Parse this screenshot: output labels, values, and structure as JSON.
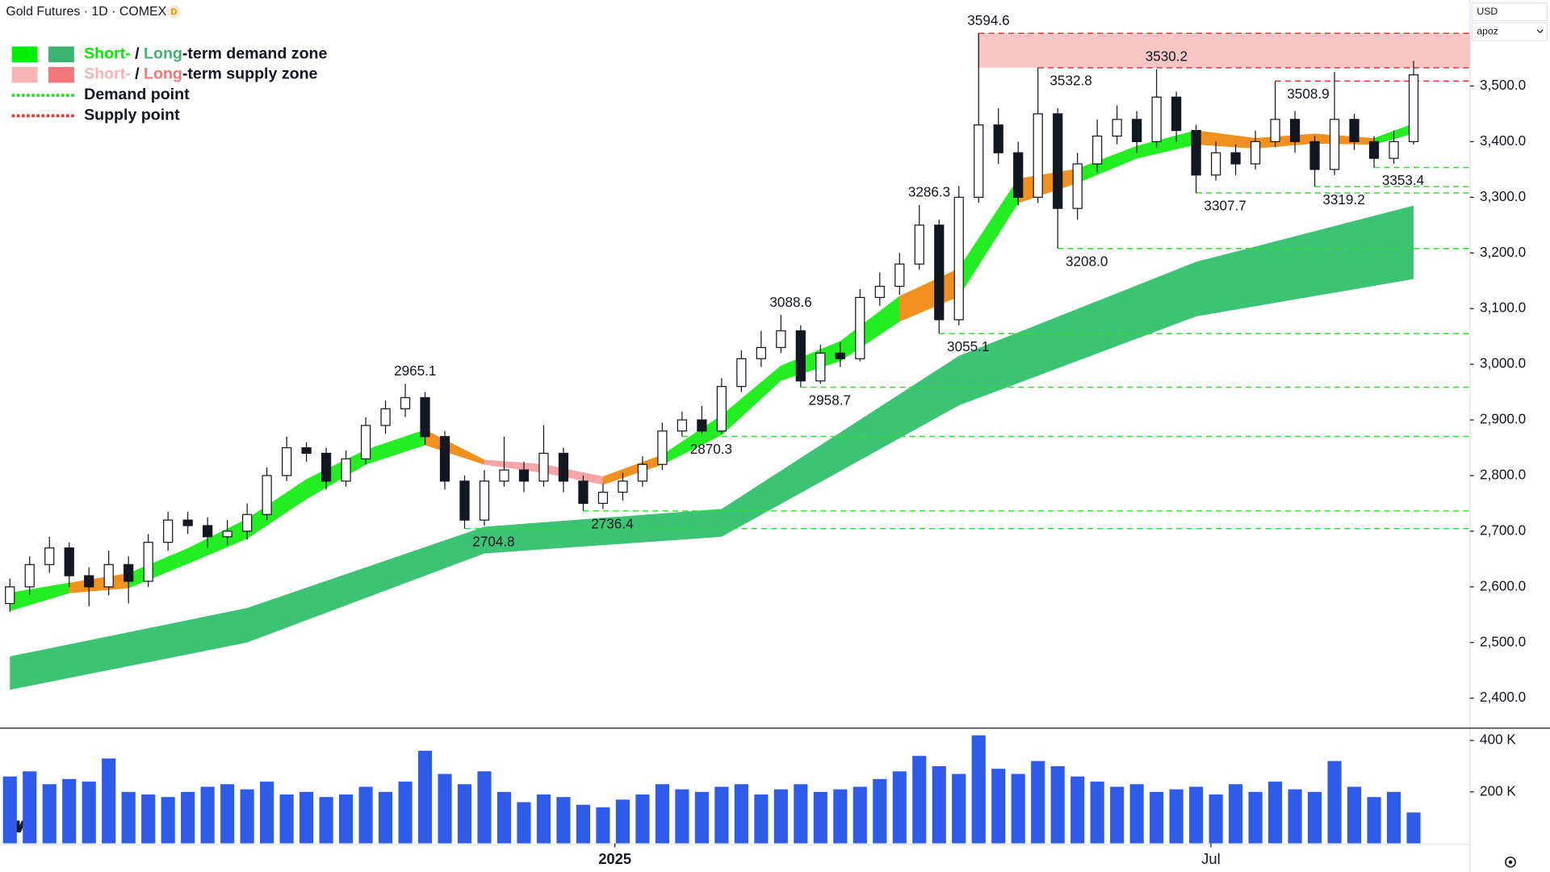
{
  "header": {
    "title": "Gold Futures · 1D · COMEX",
    "badge": "D",
    "currency": "USD",
    "unit_menu": "apoz"
  },
  "chart_data": {
    "type": "candlestick",
    "xlim": [
      -0.5,
      73.85
    ],
    "ylim": [
      2347,
      3654.5
    ],
    "xticks": [
      {
        "value": 30.6,
        "label": "2025"
      },
      {
        "value": 60.75,
        "label": "Jul"
      }
    ],
    "yticks": [
      {
        "value": 2400,
        "label": "2,400.0"
      },
      {
        "value": 2500,
        "label": "2,500.0"
      },
      {
        "value": 2600,
        "label": "2,600.0"
      },
      {
        "value": 2700,
        "label": "2,700.0"
      },
      {
        "value": 2800,
        "label": "2,800.0"
      },
      {
        "value": 2900,
        "label": "2,900.0"
      },
      {
        "value": 3000,
        "label": "3,000.0"
      },
      {
        "value": 3100,
        "label": "3,100.0"
      },
      {
        "value": 3200,
        "label": "3,200.0"
      },
      {
        "value": 3300,
        "label": "3,300.0"
      },
      {
        "value": 3400,
        "label": "3,400.0"
      },
      {
        "value": 3500,
        "label": "3,500.0"
      }
    ],
    "grid": false,
    "up_color": "#ffffff",
    "down_color": "#131722",
    "wick_color": "#131722",
    "open": [
      2570,
      2600,
      2640,
      2670,
      2620,
      2600,
      2640,
      2610,
      2680,
      2720,
      2710,
      2690,
      2700,
      2730,
      2800,
      2850,
      2840,
      2790,
      2830,
      2890,
      2920,
      2940,
      2870,
      2790,
      2720,
      2790,
      2810,
      2790,
      2840,
      2790,
      2750,
      2770,
      2790,
      2820,
      2880,
      2900,
      2880,
      2960,
      3010,
      3030,
      3060,
      2970,
      3020,
      3010,
      3120,
      3140,
      3180,
      3250,
      3080,
      3300,
      3430,
      3380,
      3300,
      3450,
      3280,
      3360,
      3410,
      3440,
      3400,
      3480,
      3420,
      3340,
      3380,
      3360,
      3400,
      3440,
      3400,
      3350,
      3440,
      3400,
      3370,
      3400
    ],
    "high": [
      2615,
      2655,
      2690,
      2680,
      2635,
      2665,
      2655,
      2695,
      2735,
      2735,
      2725,
      2720,
      2750,
      2815,
      2870,
      2860,
      2850,
      2845,
      2905,
      2935,
      2965.1,
      2950,
      2880,
      2800,
      2810,
      2870,
      2825,
      2890,
      2850,
      2800,
      2785,
      2805,
      2835,
      2895,
      2915,
      2925,
      2975,
      3025,
      3060,
      3088.6,
      3070,
      3035,
      3040,
      3135,
      3165,
      3200,
      3286.3,
      3260,
      3320,
      3594.6,
      3460,
      3400,
      3532.8,
      3460,
      3380,
      3440,
      3465,
      3455,
      3530.2,
      3490,
      3430,
      3400,
      3395,
      3420,
      3508.9,
      3455,
      3410,
      3525,
      3450,
      3410,
      3420,
      3545
    ],
    "low": [
      2555,
      2585,
      2625,
      2600,
      2565,
      2585,
      2570,
      2600,
      2665,
      2695,
      2670,
      2675,
      2685,
      2720,
      2790,
      2825,
      2775,
      2780,
      2820,
      2875,
      2905,
      2855,
      2775,
      2704.8,
      2710,
      2780,
      2770,
      2780,
      2770,
      2736.4,
      2740,
      2755,
      2780,
      2810,
      2870.3,
      2875,
      2875,
      2950,
      2995,
      3020,
      2958.7,
      2965,
      2995,
      3005,
      3105,
      3125,
      3170,
      3055.1,
      3070,
      3290,
      3360,
      3285,
      3290,
      3208,
      3260,
      3345,
      3395,
      3380,
      3390,
      3400,
      3307.7,
      3330,
      3340,
      3350,
      3390,
      3380,
      3319.2,
      3340,
      3385,
      3353.4,
      3360,
      3395
    ],
    "close": [
      2600,
      2640,
      2670,
      2620,
      2600,
      2640,
      2610,
      2680,
      2720,
      2710,
      2690,
      2700,
      2730,
      2800,
      2850,
      2840,
      2790,
      2830,
      2890,
      2920,
      2940,
      2870,
      2790,
      2720,
      2790,
      2810,
      2790,
      2840,
      2790,
      2750,
      2770,
      2790,
      2820,
      2880,
      2900,
      2880,
      2960,
      3010,
      3030,
      3060,
      2970,
      3020,
      3010,
      3120,
      3140,
      3180,
      3250,
      3080,
      3300,
      3430,
      3380,
      3300,
      3450,
      3280,
      3360,
      3410,
      3440,
      3400,
      3480,
      3420,
      3340,
      3380,
      3360,
      3400,
      3440,
      3400,
      3350,
      3440,
      3400,
      3370,
      3400,
      3520
    ],
    "volume": [
      260000,
      280000,
      230000,
      250000,
      240000,
      330000,
      200000,
      190000,
      180000,
      200000,
      220000,
      230000,
      210000,
      240000,
      190000,
      200000,
      180000,
      190000,
      220000,
      200000,
      240000,
      360000,
      270000,
      230000,
      280000,
      200000,
      160000,
      190000,
      180000,
      150000,
      140000,
      170000,
      190000,
      230000,
      210000,
      200000,
      220000,
      230000,
      190000,
      210000,
      230000,
      200000,
      210000,
      220000,
      250000,
      280000,
      340000,
      300000,
      270000,
      420000,
      290000,
      270000,
      320000,
      300000,
      260000,
      240000,
      220000,
      230000,
      200000,
      210000,
      220000,
      190000,
      230000,
      200000,
      240000,
      210000,
      200000,
      320000,
      220000,
      180000,
      200000,
      120000
    ],
    "volume_color": "#2f5bea",
    "vlim": [
      0,
      446000
    ],
    "vticks": [
      {
        "value": 200000,
        "label": "200 K"
      },
      {
        "value": 400000,
        "label": "400 K"
      }
    ],
    "long_band": {
      "color": "#3cc373",
      "x": [
        0,
        12,
        24,
        36,
        48,
        60,
        71
      ],
      "upper": [
        2475,
        2562,
        2708,
        2740,
        3015,
        3184,
        3285
      ],
      "lower": [
        2415,
        2500,
        2660,
        2690,
        2926,
        3086,
        3153
      ]
    },
    "short_band": {
      "x": [
        0,
        3,
        6,
        9,
        12,
        15,
        18,
        21,
        24,
        27,
        30,
        33,
        36,
        39,
        42,
        45,
        48,
        51,
        54,
        57,
        60,
        63,
        66,
        69,
        71
      ],
      "upper": [
        2589,
        2607,
        2624,
        2669,
        2722,
        2793,
        2846,
        2882,
        2828,
        2820,
        2798,
        2837,
        2908,
        2997,
        3041,
        3122,
        3172,
        3333,
        3351,
        3392,
        3420,
        3406,
        3414,
        3406,
        3432
      ],
      "lower": [
        2557,
        2589,
        2598,
        2642,
        2687,
        2758,
        2820,
        2855,
        2820,
        2805,
        2784,
        2820,
        2873,
        2971,
        3006,
        3077,
        3122,
        3290,
        3326,
        3370,
        3395,
        3388,
        3397,
        3395,
        3415
      ],
      "colors": [
        "#22ee22",
        "#f0901e",
        "#22ee22",
        "#22ee22",
        "#22ee22",
        "#22ee22",
        "#22ee22",
        "#f0901e",
        "#f4a6a6",
        "#f4a6a6",
        "#f0901e",
        "#22ee22",
        "#22ee22",
        "#22ee22",
        "#22ee22",
        "#f0901e",
        "#22ee22",
        "#f0901e",
        "#22ee22",
        "#22ee22",
        "#f0901e",
        "#f0901e",
        "#f0901e",
        "#22ee22"
      ]
    },
    "supply_zone": {
      "x": 49,
      "top": 3594.6,
      "bottom": 3532.8,
      "color": "#f8c0c0",
      "line_color": "#e53935"
    },
    "supply_points": [
      {
        "x": 52,
        "value": 3532.8
      },
      {
        "x": 64,
        "value": 3508.9
      }
    ],
    "demand_color": "#33dd33",
    "demand_points": [
      {
        "x": 23,
        "value": 2704.8
      },
      {
        "x": 29,
        "value": 2736.4
      },
      {
        "x": 34,
        "value": 2870.3
      },
      {
        "x": 40,
        "value": 2958.7
      },
      {
        "x": 47,
        "value": 3055.1
      },
      {
        "x": 53,
        "value": 3208,
        "label": "3208.0"
      },
      {
        "x": 60,
        "value": 3307.7
      },
      {
        "x": 66,
        "value": 3319.2
      },
      {
        "x": 69,
        "value": 3353.4
      }
    ],
    "peaks": [
      {
        "x": 20,
        "value": 2965.1
      },
      {
        "x": 39,
        "value": 3088.6
      },
      {
        "x": 46,
        "value": 3286.3
      },
      {
        "x": 49,
        "value": 3594.6
      },
      {
        "x": 58,
        "value": 3530.2
      }
    ],
    "legend": [
      {
        "parts": [
          "Short-",
          " / ",
          "Long",
          "-term demand zone"
        ],
        "colors": [
          "#00ee00",
          "#3cb371"
        ]
      },
      {
        "parts": [
          "Short-",
          " / ",
          "Long",
          "-term supply zone"
        ],
        "colors": [
          "#f8b4b4",
          "#f07878"
        ]
      },
      {
        "text": "Demand point",
        "color": "#22dd22"
      },
      {
        "text": "Supply point",
        "color": "#e53935"
      }
    ]
  }
}
